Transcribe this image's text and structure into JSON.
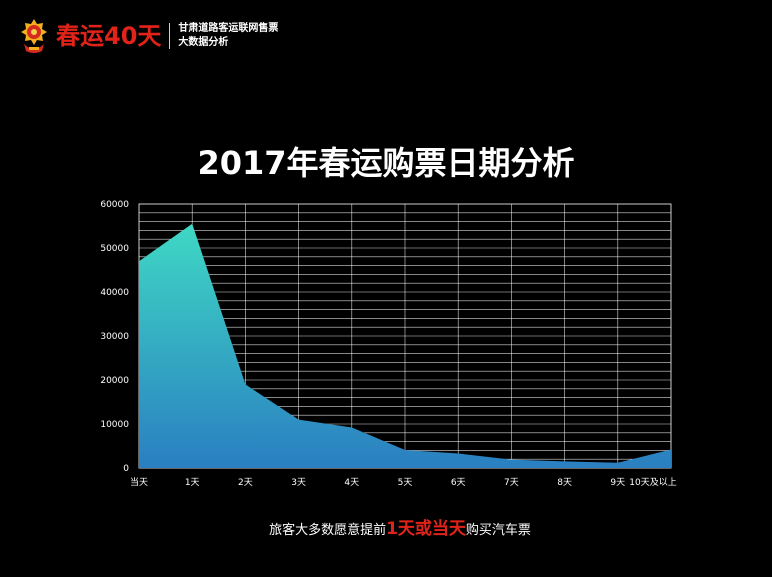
{
  "header": {
    "brand": "春运40天",
    "subtitle_line1": "甘肃道路客运联网售票",
    "subtitle_line2": "大数据分析"
  },
  "colors": {
    "brand_red": "#e2231a",
    "area_top": "#3fd8c4",
    "area_bottom": "#2a7fc1",
    "grid": "#ffffff"
  },
  "chart_data": {
    "type": "area",
    "title": "2017年春运购票日期分析",
    "categories": [
      "当天",
      "1天",
      "2天",
      "3天",
      "4天",
      "5天",
      "6天",
      "7天",
      "8天",
      "9天",
      "10天及以上"
    ],
    "values": [
      47000,
      55500,
      19000,
      11000,
      9200,
      4100,
      3300,
      1900,
      1500,
      1200,
      4200
    ],
    "ylim": [
      0,
      60000
    ],
    "yticks": [
      0,
      10000,
      20000,
      30000,
      40000,
      50000,
      60000
    ],
    "grid": true,
    "legend": "none"
  },
  "caption": {
    "prefix": "旅客大多数愿意提前",
    "highlight": "1天或当天",
    "suffix": "购买汽车票"
  }
}
